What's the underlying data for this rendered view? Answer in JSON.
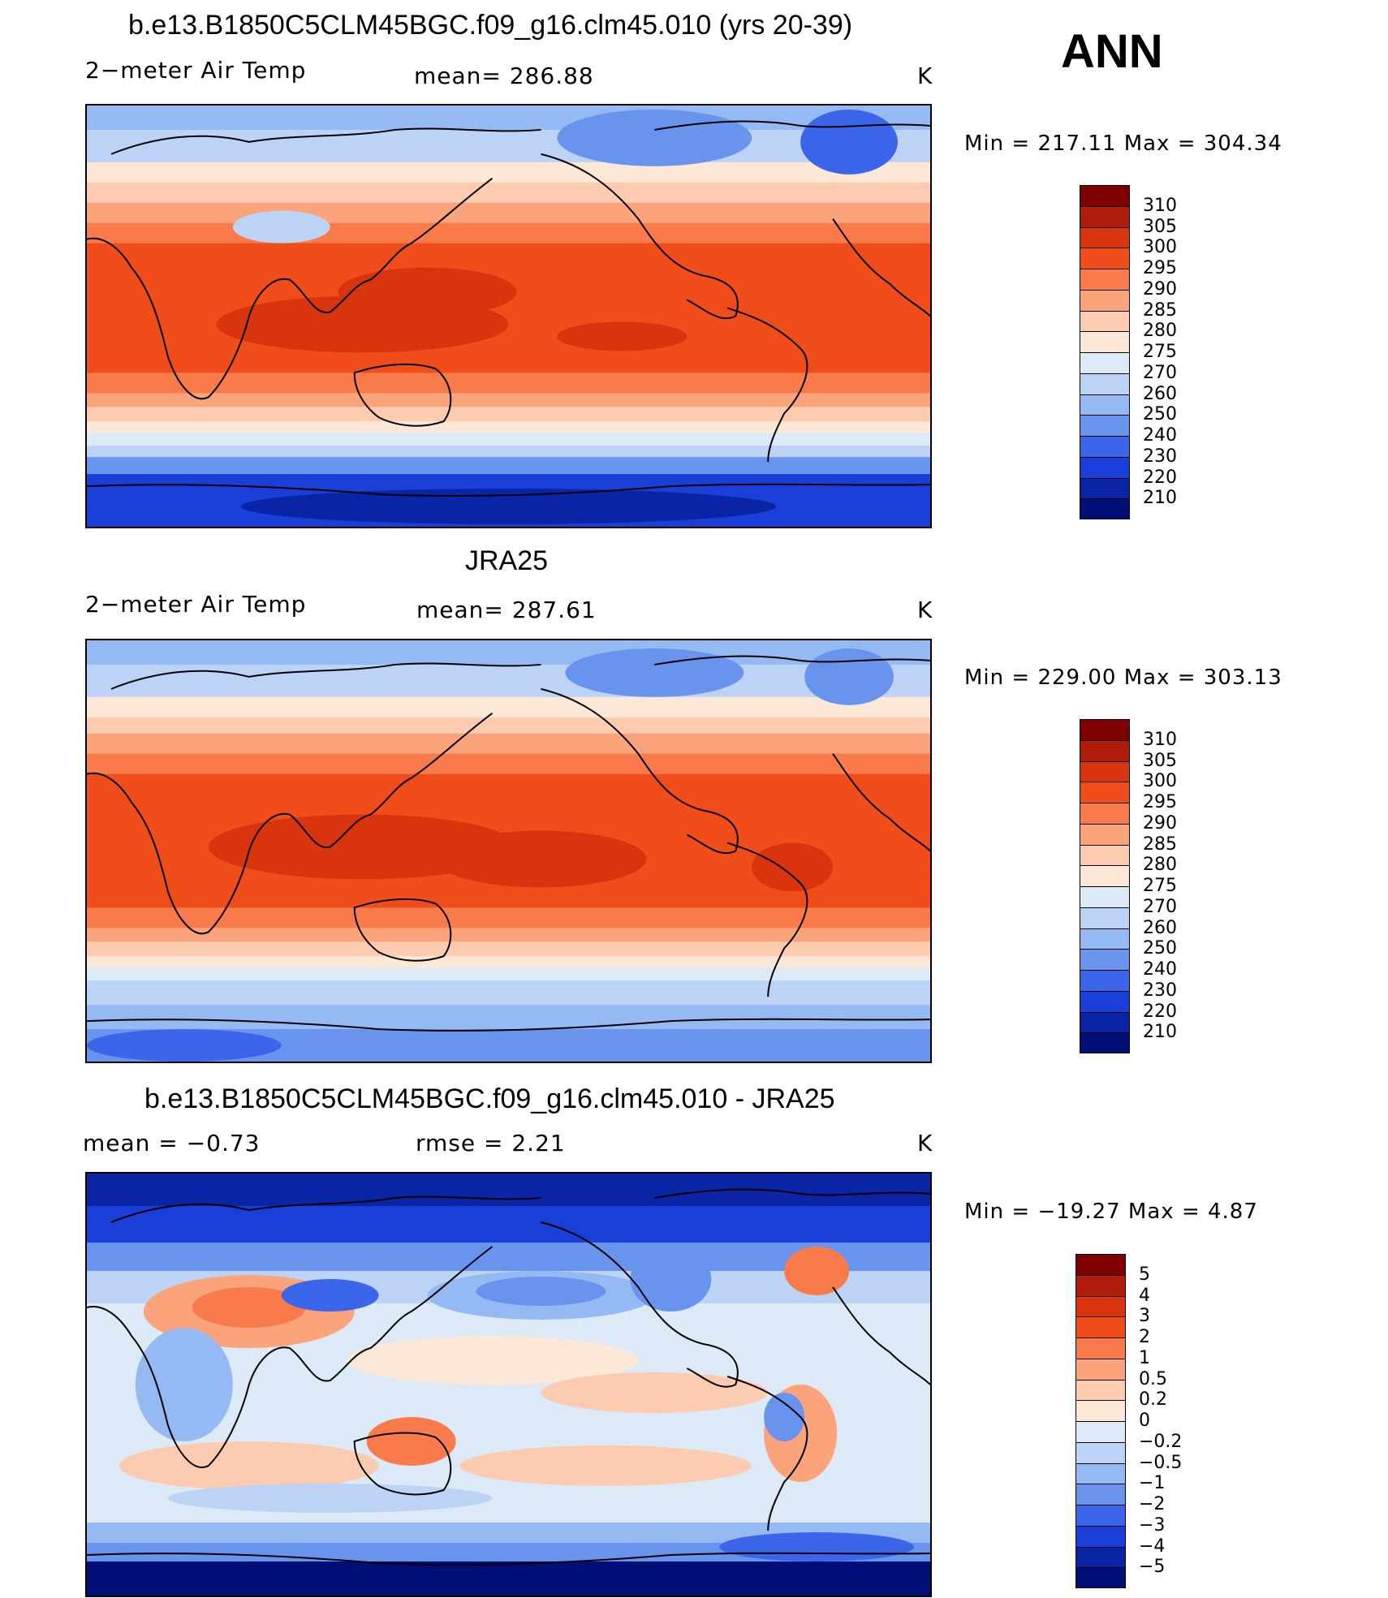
{
  "season": "ANN",
  "land_color": "#000000",
  "panels": [
    {
      "id": "model",
      "title": "b.e13.B1850C5CLM45BGC.f09_g16.clm45.010 (yrs 20-39)",
      "left_label": "2−meter Air Temp",
      "center_label": "mean=  286.88",
      "units": "K",
      "min_max": "Min  =  217.11  Max  =  304.34",
      "scale": "abs"
    },
    {
      "id": "obs",
      "title": "JRA25",
      "left_label": "2−meter Air Temp",
      "center_label": "mean=  287.61",
      "units": "K",
      "min_max": "Min  =  229.00  Max  =  303.13",
      "scale": "abs"
    },
    {
      "id": "diff",
      "title": "b.e13.B1850C5CLM45BGC.f09_g16.clm45.010 - JRA25",
      "left_label": "mean  =     −0.73",
      "center_label": "rmse  =      2.21",
      "units": "K",
      "min_max": "Min  =  −19.27  Max  =       4.87",
      "scale": "diff"
    }
  ],
  "colorbars": {
    "abs": {
      "labels": [
        "310",
        "305",
        "300",
        "295",
        "290",
        "285",
        "280",
        "275",
        "270",
        "260",
        "250",
        "240",
        "230",
        "220",
        "210"
      ],
      "colors": [
        "#7f0000",
        "#b01c0a",
        "#d8340d",
        "#f04d1a",
        "#f97a4a",
        "#fba47c",
        "#fdccb0",
        "#fde8d8",
        "#dce9f7",
        "#bcd3f5",
        "#94b9f3",
        "#6894ee",
        "#3b66e9",
        "#1a3fd8",
        "#0a24a6",
        "#000e78"
      ]
    },
    "diff": {
      "labels": [
        "5",
        "4",
        "3",
        "2",
        "1",
        "0.5",
        "0.2",
        "0",
        "−0.2",
        "−0.5",
        "−1",
        "−2",
        "−3",
        "−4",
        "−5"
      ],
      "colors": [
        "#7f0000",
        "#b01c0a",
        "#d8340d",
        "#f04d1a",
        "#f97a4a",
        "#fba47c",
        "#fdccb0",
        "#fde8d8",
        "#dce9f7",
        "#bcd3f5",
        "#94b9f3",
        "#6894ee",
        "#3b66e9",
        "#1a3fd8",
        "#0a24a6",
        "#000e78"
      ]
    }
  }
}
